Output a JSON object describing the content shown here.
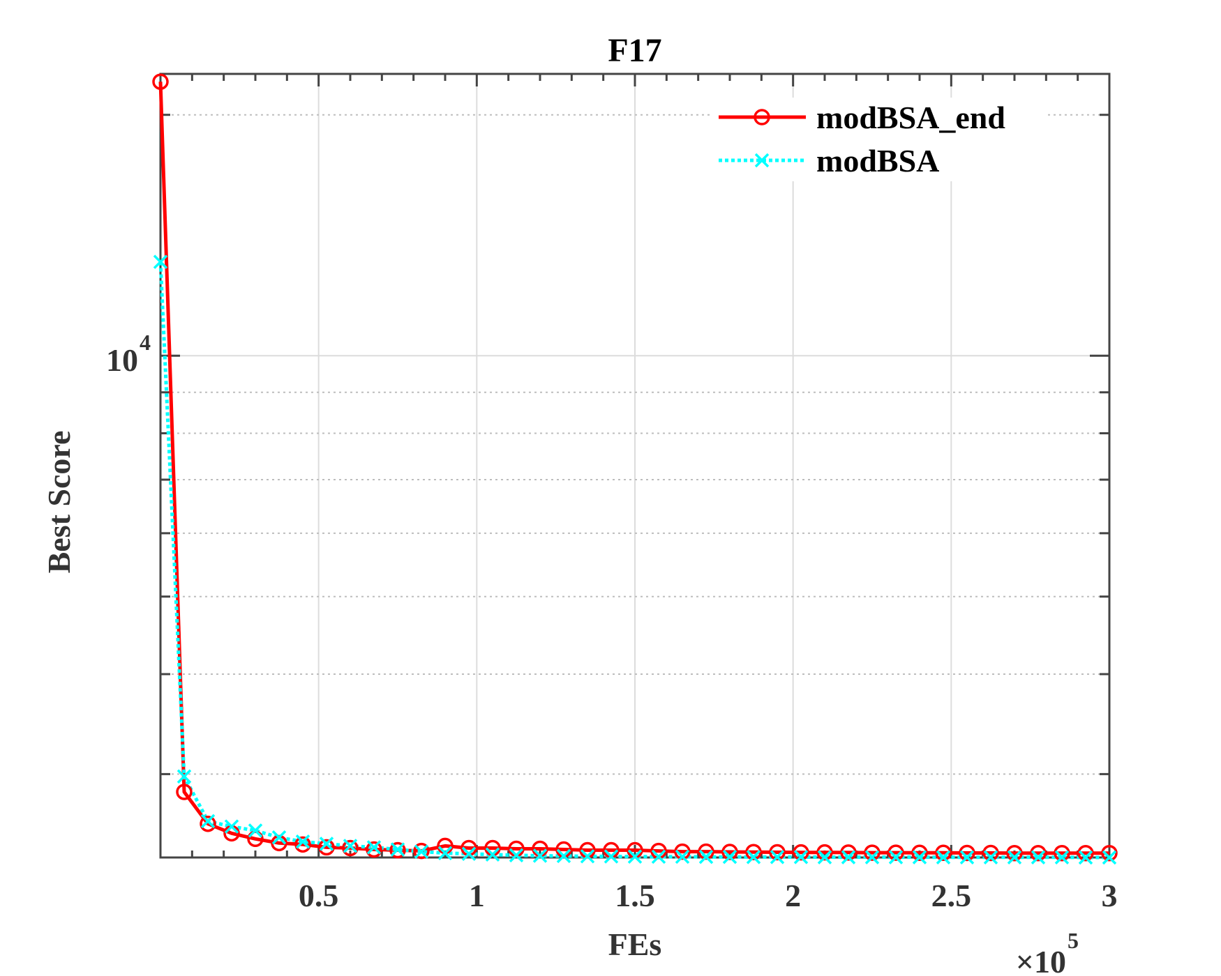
{
  "chart_data": {
    "type": "line",
    "title": "F17",
    "xlabel": "FEs",
    "ylabel": "Best Score",
    "x_exponent_label": "×10",
    "x_exponent_power": "5",
    "y_scale": "log",
    "xlim": [
      0,
      300000
    ],
    "ylim": [
      2360,
      22500
    ],
    "x_ticks": [
      {
        "value": 50000,
        "label": "0.5"
      },
      {
        "value": 100000,
        "label": "1"
      },
      {
        "value": 150000,
        "label": "1.5"
      },
      {
        "value": 200000,
        "label": "2"
      },
      {
        "value": 250000,
        "label": "2.5"
      },
      {
        "value": 300000,
        "label": "3"
      }
    ],
    "y_ticks": [
      {
        "value": 10000,
        "label_base": "10",
        "label_power": "4"
      }
    ],
    "grid": true,
    "legend_position": "top-right",
    "series": [
      {
        "name": "modBSA_end",
        "color": "#ff0000",
        "line_style": "solid",
        "marker": "circle",
        "x": [
          0,
          7500,
          15000,
          22500,
          30000,
          37500,
          45000,
          52500,
          60000,
          67500,
          75000,
          82500,
          90000,
          97500,
          105000,
          112500,
          120000,
          127500,
          135000,
          142500,
          150000,
          157500,
          165000,
          172500,
          180000,
          187500,
          195000,
          202500,
          210000,
          217500,
          225000,
          232500,
          240000,
          247500,
          255000,
          262500,
          270000,
          277500,
          285000,
          292500,
          300000
        ],
        "y": [
          22000,
          2850,
          2600,
          2530,
          2490,
          2460,
          2450,
          2430,
          2425,
          2415,
          2410,
          2405,
          2440,
          2425,
          2425,
          2420,
          2420,
          2415,
          2410,
          2410,
          2410,
          2405,
          2400,
          2400,
          2398,
          2397,
          2396,
          2395,
          2395,
          2394,
          2393,
          2393,
          2392,
          2392,
          2391,
          2391,
          2390,
          2390,
          2390,
          2390,
          2390
        ]
      },
      {
        "name": "modBSA",
        "color": "#00ffff",
        "line_style": "dotted",
        "marker": "x",
        "x": [
          0,
          7500,
          15000,
          22500,
          30000,
          37500,
          45000,
          52500,
          60000,
          67500,
          75000,
          82500,
          90000,
          97500,
          105000,
          112500,
          120000,
          127500,
          135000,
          142500,
          150000,
          157500,
          165000,
          172500,
          180000,
          187500,
          195000,
          202500,
          210000,
          217500,
          225000,
          232500,
          240000,
          247500,
          255000,
          262500,
          270000,
          277500,
          285000,
          292500,
          300000
        ],
        "y": [
          13100,
          2980,
          2620,
          2580,
          2550,
          2500,
          2470,
          2455,
          2440,
          2430,
          2415,
          2400,
          2390,
          2385,
          2380,
          2375,
          2372,
          2370,
          2368,
          2367,
          2366,
          2365,
          2365,
          2364,
          2364,
          2363,
          2363,
          2363,
          2362,
          2362,
          2362,
          2362,
          2362,
          2361,
          2361,
          2361,
          2361,
          2361,
          2361,
          2360,
          2360
        ]
      }
    ]
  }
}
